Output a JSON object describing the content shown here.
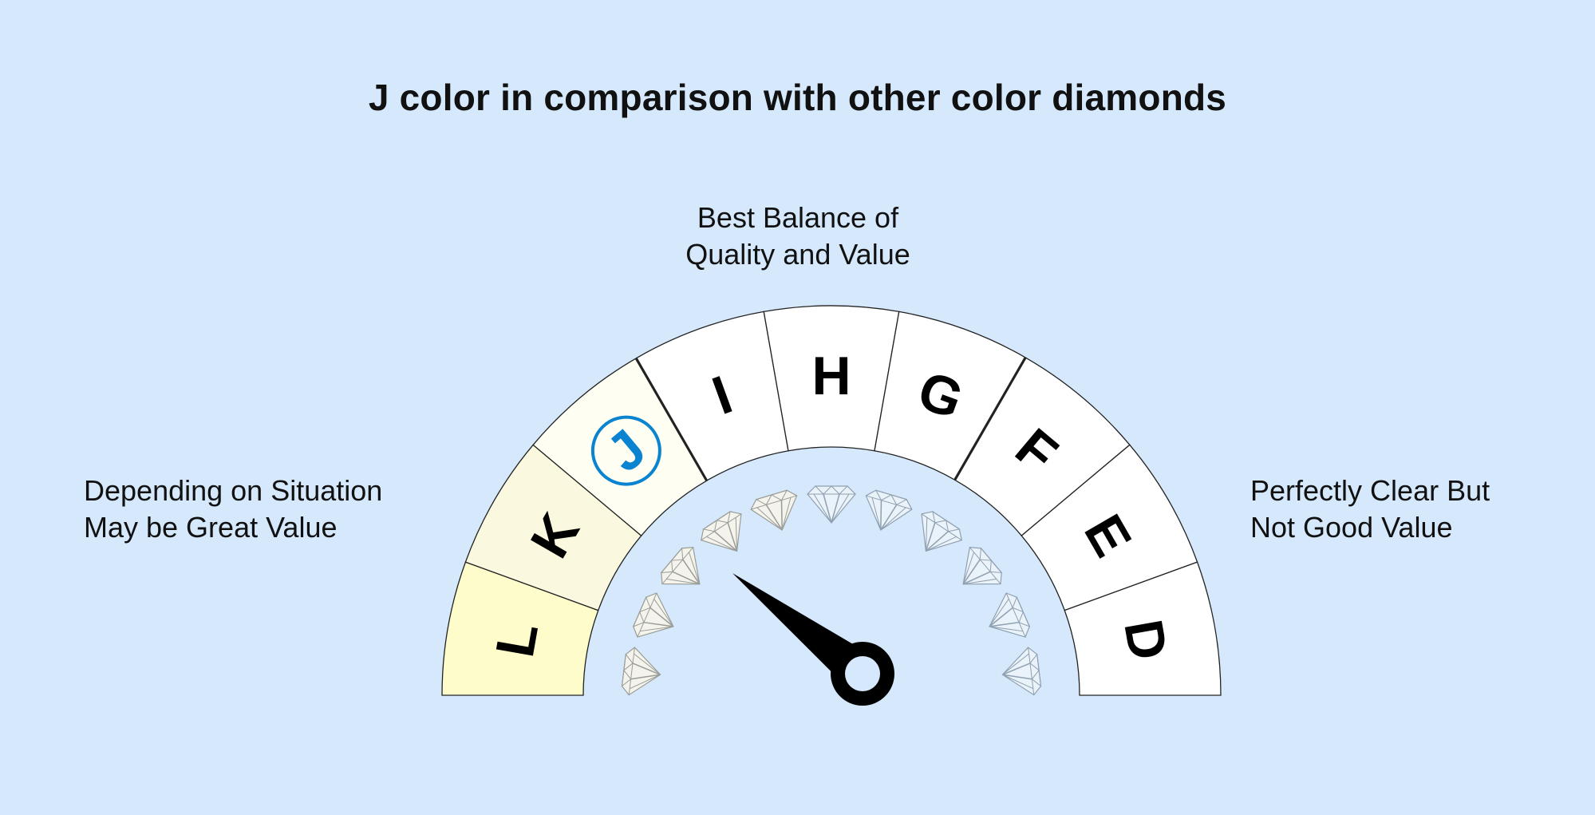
{
  "title": "J color in comparison with other color diamonds",
  "labels": {
    "top": [
      "Best Balance of",
      "Quality and Value"
    ],
    "left": [
      "Depending on Situation",
      "May be Great Value"
    ],
    "right": [
      "Perfectly Clear But",
      "Not Good Value"
    ]
  },
  "gauge": {
    "grades": [
      {
        "letter": "L",
        "fill": "#fffccc"
      },
      {
        "letter": "K",
        "fill": "#faf8df"
      },
      {
        "letter": "J",
        "fill": "#fefef3",
        "highlighted": true
      },
      {
        "letter": "I",
        "fill": "#ffffff"
      },
      {
        "letter": "H",
        "fill": "#ffffff"
      },
      {
        "letter": "G",
        "fill": "#ffffff"
      },
      {
        "letter": "F",
        "fill": "#ffffff"
      },
      {
        "letter": "E",
        "fill": "#ffffff"
      },
      {
        "letter": "D",
        "fill": "#ffffff"
      }
    ],
    "selected": "J",
    "highlight_color": "#0a84d0",
    "thick_dividers_after": [
      "J",
      "G"
    ],
    "needle_color": "#000000",
    "diamond_count": 11,
    "diamond_icon": "diamond-icon"
  },
  "colors": {
    "background": "#d5e8fc",
    "text": "#111111"
  }
}
